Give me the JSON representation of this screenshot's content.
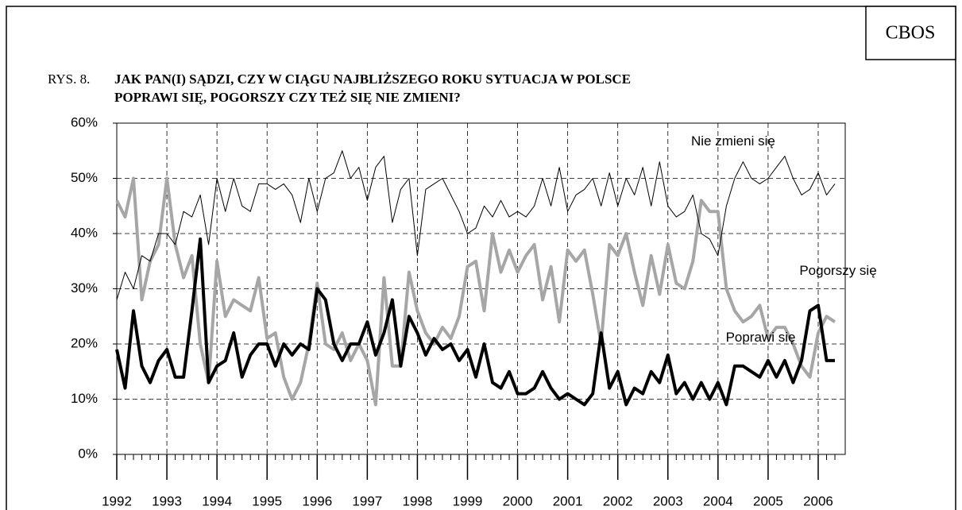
{
  "chart_data": {
    "type": "line",
    "source": "CBOS",
    "title_prefix": "RYS. 8.",
    "title": [
      "JAK PAN(I) SĄDZI, CZY W CIĄGU NAJBLIŻSZEGO ROKU SYTUACJA W POLSCE",
      "POPRAWI SIĘ, POGORSZY CZY TEŻ SIĘ NIE ZMIENI?"
    ],
    "categories": [
      "1992",
      null,
      null,
      null,
      null,
      null,
      "1993",
      null,
      null,
      null,
      null,
      null,
      "1994",
      null,
      null,
      null,
      null,
      null,
      "1995",
      null,
      null,
      null,
      null,
      null,
      "1996",
      null,
      null,
      null,
      null,
      null,
      "1997",
      null,
      null,
      null,
      null,
      null,
      "1998",
      null,
      null,
      null,
      null,
      null,
      "1999",
      null,
      null,
      null,
      null,
      null,
      "2000",
      null,
      null,
      null,
      null,
      null,
      "2001",
      null,
      null,
      null,
      null,
      null,
      "2002",
      null,
      null,
      null,
      null,
      null,
      "2003",
      null,
      null,
      null,
      null,
      null,
      "2004",
      null,
      null,
      null,
      null,
      null,
      "2005",
      null,
      null,
      null,
      null,
      null,
      "2006",
      null,
      null
    ],
    "series": [
      {
        "name": "Nie zmieni się",
        "color": "#000000",
        "values": [
          28,
          33,
          30,
          36,
          35,
          40,
          40,
          38,
          44,
          43,
          47,
          38,
          50,
          44,
          50,
          45,
          44,
          49,
          49,
          48,
          49,
          47,
          42,
          50,
          44,
          50,
          51,
          55,
          50,
          52,
          46,
          52,
          54,
          42,
          48,
          50,
          36,
          48,
          49,
          50,
          47,
          44,
          40,
          41,
          45,
          43,
          46,
          43,
          44,
          43,
          45,
          50,
          45,
          52,
          44,
          47,
          48,
          50,
          45,
          51,
          45,
          50,
          47,
          52,
          45,
          53,
          45,
          43,
          44,
          47,
          40,
          39,
          36,
          45,
          50,
          53,
          50,
          49,
          50,
          52,
          54,
          50,
          47,
          48,
          51,
          47,
          49
        ]
      },
      {
        "name": "Pogorszy się",
        "color": "#a6a6a6",
        "values": [
          46,
          43,
          50,
          28,
          35,
          38,
          50,
          38,
          32,
          36,
          20,
          13,
          35,
          25,
          28,
          27,
          26,
          32,
          21,
          22,
          14,
          10,
          13,
          20,
          31,
          20,
          19,
          22,
          17,
          20,
          17,
          9,
          32,
          16,
          16,
          33,
          26,
          22,
          20,
          23,
          21,
          25,
          34,
          35,
          26,
          40,
          33,
          37,
          33,
          36,
          38,
          28,
          34,
          24,
          37,
          35,
          37,
          29,
          20,
          38,
          36,
          40,
          33,
          27,
          36,
          29,
          38,
          31,
          30,
          35,
          46,
          44,
          44,
          30,
          26,
          24,
          25,
          27,
          21,
          23,
          23,
          20,
          16,
          14,
          22,
          25,
          24
        ]
      },
      {
        "name": "Poprawi się",
        "color": "#000000",
        "values": [
          19,
          12,
          26,
          16,
          13,
          17,
          19,
          14,
          14,
          26,
          39,
          13,
          16,
          17,
          22,
          14,
          18,
          20,
          20,
          16,
          20,
          18,
          20,
          19,
          30,
          28,
          20,
          17,
          20,
          20,
          24,
          18,
          22,
          28,
          16,
          25,
          22,
          18,
          21,
          19,
          20,
          17,
          19,
          14,
          20,
          13,
          12,
          15,
          11,
          11,
          12,
          15,
          12,
          10,
          11,
          10,
          9,
          11,
          22,
          12,
          15,
          9,
          12,
          11,
          15,
          13,
          18,
          11,
          13,
          10,
          13,
          10,
          13,
          9,
          16,
          16,
          15,
          14,
          17,
          14,
          17,
          13,
          17,
          26,
          27,
          17,
          17
        ]
      }
    ],
    "ylim": [
      0,
      60
    ],
    "yticks": [
      {
        "value": 0,
        "label": "0%"
      },
      {
        "value": 10,
        "label": "10%"
      },
      {
        "value": 20,
        "label": "20%"
      },
      {
        "value": 30,
        "label": "30%"
      },
      {
        "value": 40,
        "label": "40%"
      },
      {
        "value": 50,
        "label": "50%"
      },
      {
        "value": 60,
        "label": "60%"
      }
    ],
    "grid": true
  }
}
